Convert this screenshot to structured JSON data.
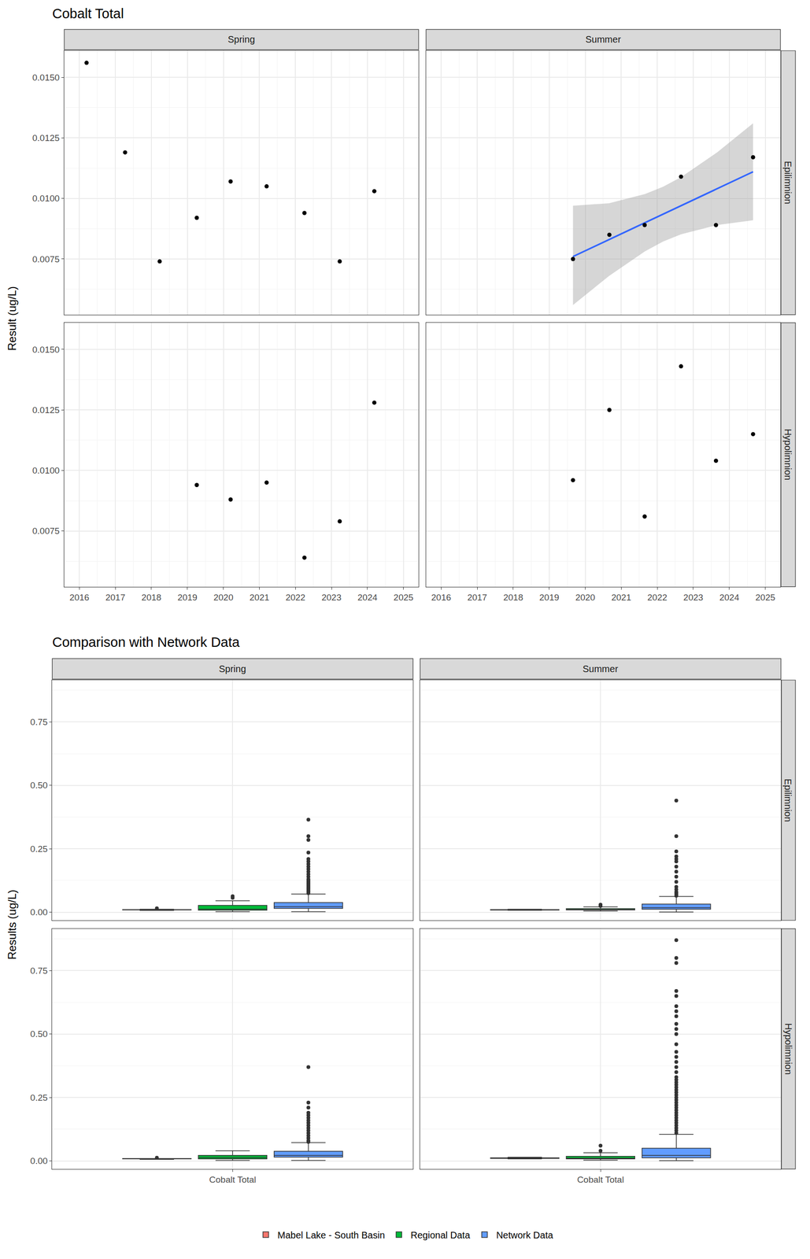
{
  "chart_data": [
    {
      "type": "scatter",
      "title": "Cobalt Total",
      "y_label": "Result (ug/L)",
      "columns": [
        "Spring",
        "Summer"
      ],
      "rows": [
        "Epilimnion",
        "Hypolimnion"
      ],
      "xlim": [
        2015.58,
        2025.42
      ],
      "xticks": [
        2016,
        2017,
        2018,
        2019,
        2020,
        2021,
        2022,
        2023,
        2024,
        2025
      ],
      "ylim": [
        0.0052,
        0.0161
      ],
      "yticks": [
        0.0075,
        {
          "value": 0.01,
          "label": "0.0100"
        },
        0.0125,
        {
          "value": 0.015,
          "label": "0.0150"
        }
      ],
      "grid": true,
      "color": "#000000",
      "marker": "circle",
      "panels": [
        {
          "column": "Spring",
          "row": "Epilimnion",
          "x": [
            2016.2,
            2017.27,
            2018.23,
            2019.26,
            2020.2,
            2021.2,
            2022.25,
            2023.23,
            2024.19
          ],
          "values": [
            0.0156,
            0.0119,
            0.0074,
            0.0092,
            0.0107,
            0.0105,
            0.0094,
            0.0074,
            0.0103
          ]
        },
        {
          "column": "Summer",
          "row": "Epilimnion",
          "x": [
            2019.66,
            2020.67,
            2021.65,
            2022.66,
            2023.63,
            2024.66
          ],
          "values": [
            0.0075,
            0.0085,
            0.0089,
            0.0109,
            0.0089,
            0.0117
          ],
          "trend": {
            "color": "#3366FF",
            "x": [
              2019.66,
              2020.66,
              2021.66,
              2022.16,
              2022.66,
              2023.66,
              2024.66
            ],
            "values": [
              0.0076,
              0.0083,
              0.009,
              0.00935,
              0.0097,
              0.0104,
              0.0111
            ],
            "lower": [
              0.0056,
              0.0068,
              0.00782,
              0.00822,
              0.00852,
              0.0089,
              0.0091
            ],
            "upper": [
              0.0097,
              0.0098,
              0.01018,
              0.01048,
              0.01088,
              0.0119,
              0.0131
            ]
          }
        },
        {
          "column": "Spring",
          "row": "Hypolimnion",
          "x": [
            2019.26,
            2020.2,
            2021.2,
            2022.25,
            2023.23,
            2024.19
          ],
          "values": [
            0.0094,
            0.0088,
            0.0095,
            0.0064,
            0.0079,
            0.0128
          ]
        },
        {
          "column": "Summer",
          "row": "Hypolimnion",
          "x": [
            2019.66,
            2020.67,
            2021.65,
            2022.66,
            2023.63,
            2024.66
          ],
          "values": [
            0.0096,
            0.0125,
            0.0081,
            0.0143,
            0.0104,
            0.0115
          ]
        }
      ]
    },
    {
      "type": "box",
      "title": "Comparison with Network Data",
      "y_label": "Results (ug/L)",
      "categories": [
        "Cobalt Total"
      ],
      "columns": [
        "Spring",
        "Summer"
      ],
      "rows": [
        "Epilimnion",
        "Hypolimnion"
      ],
      "ylim": [
        -0.032,
        0.915
      ],
      "yticks": [
        {
          "value": 0,
          "label": "0.00"
        },
        0.25,
        {
          "value": 0.5,
          "label": "0.50"
        },
        0.75
      ],
      "grid": true,
      "legend": "bottom",
      "series": [
        {
          "name": "Mabel Lake - South Basin",
          "color": "#F8766D"
        },
        {
          "name": "Regional Data",
          "color": "#00BA38"
        },
        {
          "name": "Network Data",
          "color": "#619CFF"
        }
      ],
      "panels": [
        {
          "column": "Spring",
          "row": "Epilimnion",
          "boxes": [
            {
              "q1": 0.0092,
              "median": 0.0103,
              "q3": 0.0107,
              "lower": 0.0074,
              "upper": 0.0119,
              "outliers": [
                0.0156
              ]
            },
            {
              "q1": 0.008,
              "median": 0.012,
              "q3": 0.027,
              "lower": 0.002,
              "upper": 0.045,
              "outliers": [
                0.057,
                0.063
              ]
            },
            {
              "q1": 0.015,
              "median": 0.022,
              "q3": 0.038,
              "lower": 0.002,
              "upper": 0.072,
              "outliers": [
                0.075,
                0.08,
                0.085,
                0.09,
                0.095,
                0.1,
                0.105,
                0.11,
                0.115,
                0.12,
                0.125,
                0.13,
                0.14,
                0.15,
                0.16,
                0.17,
                0.18,
                0.19,
                0.2,
                0.21,
                0.235,
                0.285,
                0.3,
                0.365
              ]
            }
          ]
        },
        {
          "column": "Summer",
          "row": "Epilimnion",
          "boxes": [
            {
              "q1": 0.0086,
              "median": 0.0089,
              "q3": 0.0104,
              "lower": 0.0075,
              "upper": 0.0117,
              "outliers": []
            },
            {
              "q1": 0.009,
              "median": 0.011,
              "q3": 0.014,
              "lower": 0.005,
              "upper": 0.021,
              "outliers": [
                0.025,
                0.03
              ]
            },
            {
              "q1": 0.012,
              "median": 0.018,
              "q3": 0.032,
              "lower": 0.001,
              "upper": 0.062,
              "outliers": [
                0.065,
                0.07,
                0.075,
                0.08,
                0.09,
                0.1,
                0.12,
                0.14,
                0.16,
                0.18,
                0.2,
                0.21,
                0.22,
                0.24,
                0.3,
                0.44
              ]
            }
          ]
        },
        {
          "column": "Spring",
          "row": "Hypolimnion",
          "boxes": [
            {
              "q1": 0.0081,
              "median": 0.0091,
              "q3": 0.0095,
              "lower": 0.0064,
              "upper": 0.0095,
              "outliers": [
                0.0128
              ]
            },
            {
              "q1": 0.008,
              "median": 0.013,
              "q3": 0.022,
              "lower": 0.002,
              "upper": 0.04,
              "outliers": []
            },
            {
              "q1": 0.015,
              "median": 0.022,
              "q3": 0.038,
              "lower": 0.002,
              "upper": 0.072,
              "outliers": [
                0.075,
                0.08,
                0.09,
                0.1,
                0.11,
                0.12,
                0.13,
                0.14,
                0.15,
                0.16,
                0.17,
                0.18,
                0.19,
                0.21,
                0.23,
                0.37
              ]
            }
          ]
        },
        {
          "column": "Summer",
          "row": "Hypolimnion",
          "boxes": [
            {
              "q1": 0.0098,
              "median": 0.01095,
              "q3": 0.01225,
              "lower": 0.0081,
              "upper": 0.0143,
              "outliers": []
            },
            {
              "q1": 0.008,
              "median": 0.011,
              "q3": 0.018,
              "lower": 0.003,
              "upper": 0.032,
              "outliers": [
                0.04,
                0.06
              ]
            },
            {
              "q1": 0.012,
              "median": 0.022,
              "q3": 0.05,
              "lower": 0.001,
              "upper": 0.105,
              "outliers": [
                0.11,
                0.12,
                0.13,
                0.14,
                0.15,
                0.16,
                0.17,
                0.18,
                0.19,
                0.2,
                0.21,
                0.22,
                0.23,
                0.24,
                0.25,
                0.26,
                0.27,
                0.28,
                0.29,
                0.3,
                0.31,
                0.32,
                0.33,
                0.35,
                0.37,
                0.39,
                0.41,
                0.43,
                0.46,
                0.5,
                0.52,
                0.54,
                0.57,
                0.59,
                0.61,
                0.65,
                0.67,
                0.78,
                0.8,
                0.87
              ]
            }
          ]
        }
      ]
    }
  ]
}
